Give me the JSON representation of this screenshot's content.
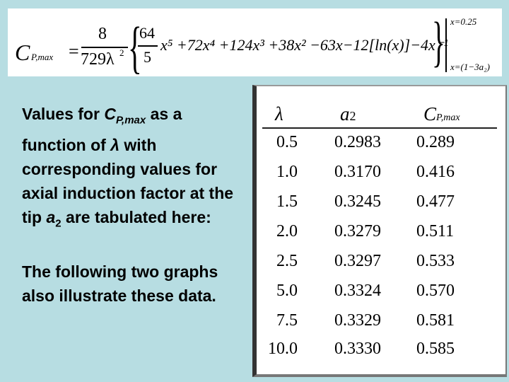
{
  "formula": {
    "lhs_symbol": "C",
    "lhs_subscript": "P,max",
    "equals": "=",
    "coef_numerator": "8",
    "coef_denominator": "729λ",
    "coef_denominator_power": "2",
    "frac64_num": "64",
    "frac64_den": "5",
    "polynomial": "x⁵ +72x⁴ +124x³ +38x² −63x−12[ln(x)]−4x⁻¹",
    "upper_limit": "x=0.25",
    "lower_limit": "x=(1−3a₂)"
  },
  "description": {
    "para1_parts": [
      "Values for ",
      "C",
      "P,max",
      " as a function of ",
      "λ",
      " with corresponding values for axial induction factor at the tip ",
      "a",
      "2",
      " are tabulated here:"
    ],
    "para2": "The following two graphs also illustrate these data."
  },
  "table": {
    "headers": {
      "lambda": "λ",
      "a2_main": "a",
      "a2_sub": "2",
      "cp_main": "C",
      "cp_sub": "P,max"
    },
    "rows": [
      {
        "lambda": "0.5",
        "a2": "0.2983",
        "cp": "0.289"
      },
      {
        "lambda": "1.0",
        "a2": "0.3170",
        "cp": "0.416"
      },
      {
        "lambda": "1.5",
        "a2": "0.3245",
        "cp": "0.477"
      },
      {
        "lambda": "2.0",
        "a2": "0.3279",
        "cp": "0.511"
      },
      {
        "lambda": "2.5",
        "a2": "0.3297",
        "cp": "0.533"
      },
      {
        "lambda": "5.0",
        "a2": "0.3324",
        "cp": "0.570"
      },
      {
        "lambda": "7.5",
        "a2": "0.3329",
        "cp": "0.581"
      },
      {
        "lambda": "10.0",
        "a2": "0.3330",
        "cp": "0.585"
      }
    ]
  }
}
